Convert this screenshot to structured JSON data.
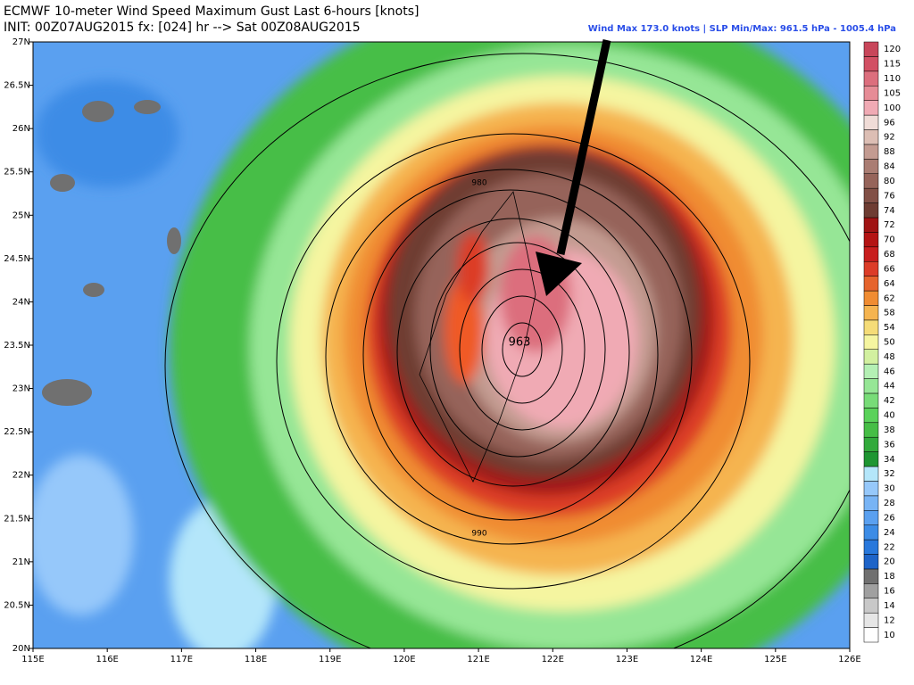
{
  "title": "ECMWF 10-meter Wind Speed Maximum Gust Last 6-hours [knots]",
  "subtitle": "INIT: 00Z07AUG2015 fx: [024] hr --> Sat 00Z08AUG2015",
  "info": "Wind Max 173.0 knots | SLP Min/Max: 961.5 hPa - 1005.4 hPa",
  "lon_ticks": [
    {
      "value": 115,
      "label": "115E"
    },
    {
      "value": 116,
      "label": "116E"
    },
    {
      "value": 117,
      "label": "117E"
    },
    {
      "value": 118,
      "label": "118E"
    },
    {
      "value": 119,
      "label": "119E"
    },
    {
      "value": 120,
      "label": "120E"
    },
    {
      "value": 121,
      "label": "121E"
    },
    {
      "value": 122,
      "label": "122E"
    },
    {
      "value": 123,
      "label": "123E"
    },
    {
      "value": 124,
      "label": "124E"
    },
    {
      "value": 125,
      "label": "125E"
    },
    {
      "value": 126,
      "label": "126E"
    }
  ],
  "lat_ticks": [
    {
      "value": 20,
      "label": "20N"
    },
    {
      "value": 20.5,
      "label": "20.5N"
    },
    {
      "value": 21,
      "label": "21N"
    },
    {
      "value": 21.5,
      "label": "21.5N"
    },
    {
      "value": 22,
      "label": "22N"
    },
    {
      "value": 22.5,
      "label": "22.5N"
    },
    {
      "value": 23,
      "label": "23N"
    },
    {
      "value": 23.5,
      "label": "23.5N"
    },
    {
      "value": 24,
      "label": "24N"
    },
    {
      "value": 24.5,
      "label": "24.5N"
    },
    {
      "value": 25,
      "label": "25N"
    },
    {
      "value": 25.5,
      "label": "25.5N"
    },
    {
      "value": 26,
      "label": "26N"
    },
    {
      "value": 26.5,
      "label": "26.5N"
    },
    {
      "value": 27,
      "label": "27N"
    }
  ],
  "lonlim": [
    115,
    126
  ],
  "latlim": [
    20,
    27
  ],
  "contour_labels": [
    "980",
    "990",
    "963"
  ],
  "colorbar": {
    "ticks": [
      10,
      12,
      14,
      16,
      18,
      20,
      22,
      24,
      26,
      28,
      30,
      32,
      34,
      36,
      38,
      40,
      42,
      44,
      46,
      48,
      50,
      54,
      58,
      62,
      64,
      66,
      68,
      70,
      72,
      74,
      76,
      80,
      84,
      88,
      92,
      96,
      100,
      105,
      110,
      115,
      120
    ],
    "colors": [
      "#ffffff",
      "#e6e6e6",
      "#c8c8c8",
      "#a0a0a0",
      "#707070",
      "#1e64c8",
      "#2878dc",
      "#3c8ce6",
      "#5aa0f0",
      "#78b4f5",
      "#96c8fa",
      "#b4e6fa",
      "#1e9632",
      "#32aa3c",
      "#46be46",
      "#5ad25a",
      "#78dc78",
      "#96e696",
      "#b4f0b4",
      "#d2f0a0",
      "#f5f5a0",
      "#f5dc78",
      "#f5b450",
      "#f08c32",
      "#e6642d",
      "#dc3c28",
      "#c81e1e",
      "#b41414",
      "#a01414",
      "#6e3c32",
      "#825046",
      "#96645a",
      "#aa7d73",
      "#c39b91",
      "#dcbeb4",
      "#f0dcd7",
      "#f0aab4",
      "#e68c96",
      "#dc6e7d",
      "#d25064",
      "#c8465a"
    ]
  }
}
